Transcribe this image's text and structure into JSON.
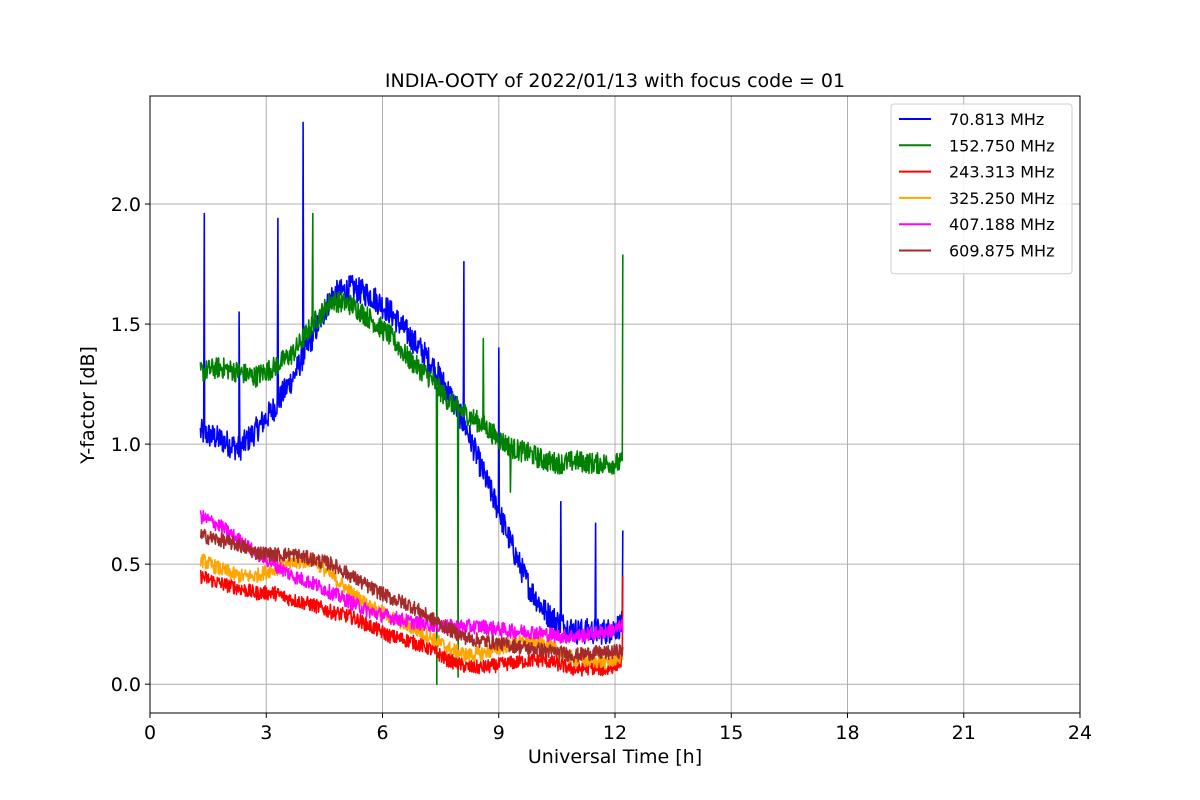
{
  "chart_data": {
    "type": "line",
    "title": "INDIA-OOTY of 2022/01/13 with focus code = 01",
    "xlabel": "Universal Time [h]",
    "ylabel": "Y-factor [dB]",
    "xlim": [
      0,
      24
    ],
    "ylim": [
      -0.12,
      2.45
    ],
    "xticks": [
      0,
      3,
      6,
      9,
      12,
      15,
      18,
      21,
      24
    ],
    "xtick_labels": [
      "0",
      "3",
      "6",
      "9",
      "12",
      "15",
      "18",
      "21",
      "24"
    ],
    "yticks": [
      0.0,
      0.5,
      1.0,
      1.5,
      2.0
    ],
    "ytick_labels": [
      "0.0",
      "0.5",
      "1.0",
      "1.5",
      "2.0"
    ],
    "grid": true,
    "legend_position": "top-right",
    "series": [
      {
        "name": " 70.813 MHz",
        "color": "#0000ff",
        "x": [
          1.3,
          1.8,
          2.3,
          2.7,
          3.2,
          3.7,
          4.2,
          4.7,
          5.2,
          5.7,
          6.2,
          6.7,
          7.2,
          7.7,
          8.2,
          8.6,
          9.0,
          9.4,
          9.8,
          10.2,
          10.6,
          11.0,
          11.4,
          11.8,
          12.2
        ],
        "y": [
          1.05,
          1.02,
          0.98,
          1.05,
          1.15,
          1.28,
          1.45,
          1.62,
          1.65,
          1.62,
          1.55,
          1.45,
          1.35,
          1.22,
          1.05,
          0.88,
          0.72,
          0.55,
          0.4,
          0.3,
          0.25,
          0.22,
          0.22,
          0.22,
          0.25
        ],
        "spikes": [
          [
            1.4,
            1.96
          ],
          [
            2.3,
            1.55
          ],
          [
            3.3,
            1.94
          ],
          [
            3.95,
            2.34
          ],
          [
            8.1,
            1.76
          ],
          [
            9.0,
            1.4
          ],
          [
            10.6,
            0.76
          ],
          [
            11.5,
            0.67
          ],
          [
            12.2,
            0.64
          ]
        ],
        "noise": 0.055
      },
      {
        "name": "152.750 MHz",
        "color": "#008000",
        "x": [
          1.3,
          1.8,
          2.3,
          2.7,
          3.2,
          3.7,
          4.2,
          4.7,
          5.2,
          5.7,
          6.2,
          6.7,
          7.2,
          7.7,
          8.2,
          8.6,
          9.0,
          9.4,
          9.8,
          10.2,
          10.6,
          11.0,
          11.4,
          11.8,
          12.2
        ],
        "y": [
          1.3,
          1.32,
          1.3,
          1.28,
          1.32,
          1.38,
          1.5,
          1.6,
          1.58,
          1.52,
          1.45,
          1.35,
          1.28,
          1.18,
          1.12,
          1.08,
          1.02,
          0.98,
          0.96,
          0.93,
          0.92,
          0.93,
          0.92,
          0.92,
          0.92
        ],
        "spikes": [
          [
            4.2,
            1.96
          ],
          [
            7.4,
            0.0
          ],
          [
            7.95,
            0.03
          ],
          [
            8.6,
            1.44
          ],
          [
            9.3,
            0.8
          ],
          [
            12.2,
            1.79
          ]
        ],
        "noise": 0.045
      },
      {
        "name": "243.313 MHz",
        "color": "#ff0000",
        "x": [
          1.3,
          1.8,
          2.3,
          2.7,
          3.2,
          3.7,
          4.2,
          4.7,
          5.2,
          5.7,
          6.2,
          6.7,
          7.2,
          7.7,
          8.2,
          8.6,
          9.0,
          9.4,
          9.8,
          10.2,
          10.6,
          11.0,
          11.4,
          11.8,
          12.2
        ],
        "y": [
          0.45,
          0.42,
          0.4,
          0.38,
          0.38,
          0.35,
          0.33,
          0.3,
          0.28,
          0.24,
          0.2,
          0.18,
          0.15,
          0.1,
          0.07,
          0.07,
          0.08,
          0.09,
          0.1,
          0.1,
          0.08,
          0.06,
          0.07,
          0.06,
          0.1
        ],
        "spikes": [
          [
            12.2,
            0.45
          ]
        ],
        "noise": 0.03
      },
      {
        "name": "325.250 MHz",
        "color": "#ffa500",
        "x": [
          1.3,
          1.8,
          2.3,
          2.7,
          3.2,
          3.7,
          4.2,
          4.7,
          5.2,
          5.7,
          6.2,
          6.7,
          7.2,
          7.7,
          8.2,
          8.6,
          9.0,
          9.4,
          9.8,
          10.2,
          10.6,
          11.0,
          11.4,
          11.8,
          12.2
        ],
        "y": [
          0.52,
          0.48,
          0.45,
          0.45,
          0.48,
          0.5,
          0.52,
          0.45,
          0.38,
          0.32,
          0.28,
          0.24,
          0.2,
          0.15,
          0.12,
          0.13,
          0.15,
          0.17,
          0.18,
          0.17,
          0.13,
          0.1,
          0.1,
          0.09,
          0.12
        ],
        "spikes": [],
        "noise": 0.03
      },
      {
        "name": "407.188 MHz",
        "color": "#ff00ff",
        "x": [
          1.3,
          1.8,
          2.3,
          2.7,
          3.2,
          3.7,
          4.2,
          4.7,
          5.2,
          5.7,
          6.2,
          6.7,
          7.2,
          7.7,
          8.2,
          8.6,
          9.0,
          9.4,
          9.8,
          10.2,
          10.6,
          11.0,
          11.4,
          11.8,
          12.2
        ],
        "y": [
          0.7,
          0.66,
          0.6,
          0.55,
          0.5,
          0.45,
          0.42,
          0.38,
          0.34,
          0.3,
          0.28,
          0.26,
          0.25,
          0.24,
          0.24,
          0.24,
          0.23,
          0.22,
          0.22,
          0.21,
          0.2,
          0.2,
          0.21,
          0.22,
          0.24
        ],
        "spikes": [],
        "noise": 0.03
      },
      {
        "name": "609.875 MHz",
        "color": "#a52a2a",
        "x": [
          1.3,
          1.8,
          2.3,
          2.7,
          3.2,
          3.7,
          4.2,
          4.7,
          5.2,
          5.7,
          6.2,
          6.7,
          7.2,
          7.7,
          8.2,
          8.6,
          9.0,
          9.4,
          9.8,
          10.2,
          10.6,
          11.0,
          11.4,
          11.8,
          12.2
        ],
        "y": [
          0.62,
          0.6,
          0.58,
          0.55,
          0.54,
          0.54,
          0.52,
          0.5,
          0.45,
          0.4,
          0.36,
          0.33,
          0.28,
          0.23,
          0.19,
          0.18,
          0.17,
          0.16,
          0.15,
          0.14,
          0.13,
          0.12,
          0.13,
          0.13,
          0.14
        ],
        "spikes": [],
        "noise": 0.03
      }
    ]
  }
}
